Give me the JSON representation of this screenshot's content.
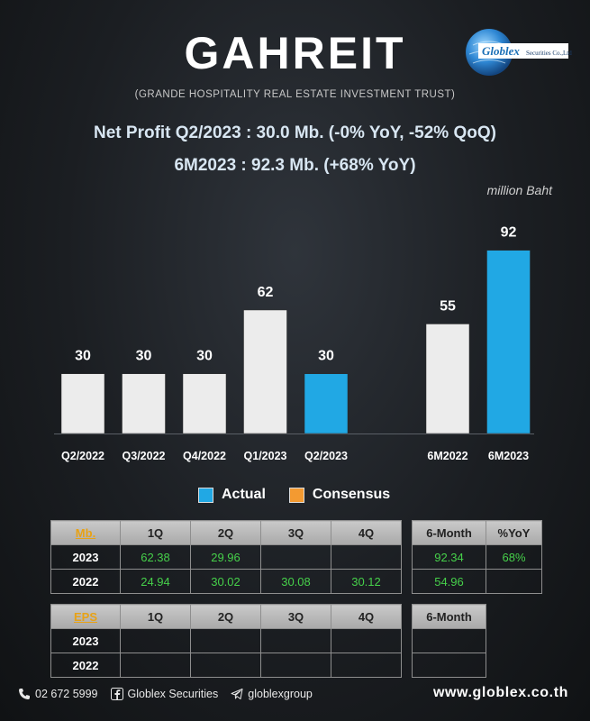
{
  "header": {
    "title": "GAHREIT",
    "subtitle": "(GRANDE HOSPITALITY REAL ESTATE INVESTMENT TRUST)",
    "logo_text": "Globlex Securities Co.,Ltd."
  },
  "headline": {
    "line1": "Net Profit  Q2/2023 : 30.0 Mb. (-0% YoY, -52% QoQ)",
    "line2": "6M2023 : 92.3 Mb. (+68% YoY)",
    "unit": "million Baht"
  },
  "colors": {
    "actual": "#21a8e4",
    "consensus": "#f39a31",
    "historical": "#ececec"
  },
  "chart_data": {
    "type": "bar",
    "categories": [
      "Q2/2022",
      "Q3/2022",
      "Q4/2022",
      "Q1/2023",
      "Q2/2023",
      "",
      "6M2022",
      "6M2023"
    ],
    "values": [
      30,
      30,
      30,
      62,
      30,
      null,
      55,
      92
    ],
    "highlight": [
      "Q2/2023",
      "6M2023"
    ],
    "ylabel": "million Baht",
    "ylim": [
      0,
      100
    ]
  },
  "legend": {
    "actual": "Actual",
    "consensus": "Consensus"
  },
  "table_mb": {
    "key": "Mb.",
    "columns": [
      "1Q",
      "2Q",
      "3Q",
      "4Q"
    ],
    "rows": [
      {
        "label": "2023",
        "values": [
          "62.38",
          "29.96",
          "",
          ""
        ]
      },
      {
        "label": "2022",
        "values": [
          "24.94",
          "30.02",
          "30.08",
          "30.12"
        ]
      }
    ]
  },
  "table_mb_6m": {
    "columns": [
      "6-Month",
      "%YoY"
    ],
    "rows": [
      {
        "values": [
          "92.34",
          "68%"
        ]
      },
      {
        "values": [
          "54.96",
          ""
        ]
      }
    ]
  },
  "table_eps": {
    "key": "EPS",
    "columns": [
      "1Q",
      "2Q",
      "3Q",
      "4Q"
    ],
    "rows": [
      {
        "label": "2023",
        "values": [
          "",
          "",
          "",
          ""
        ]
      },
      {
        "label": "2022",
        "values": [
          "",
          "",
          "",
          ""
        ]
      }
    ]
  },
  "table_eps_6m": {
    "columns": [
      "6-Month"
    ],
    "rows": [
      {
        "values": [
          ""
        ]
      },
      {
        "values": [
          ""
        ]
      }
    ]
  },
  "footer": {
    "phone": "02 672 5999",
    "facebook": "Globlex Securities",
    "telegram": "globlexgroup",
    "website": "www.globlex.co.th"
  }
}
